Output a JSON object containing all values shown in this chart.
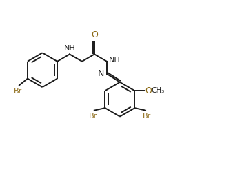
{
  "bg_color": "#ffffff",
  "line_color": "#1a1a1a",
  "br_color": "#8B6914",
  "o_color": "#8B6914",
  "n_color": "#1a1a1a",
  "line_width": 1.4,
  "figsize": [
    3.51,
    2.56
  ],
  "dpi": 100,
  "xlim": [
    0,
    10
  ],
  "ylim": [
    0,
    7.15
  ]
}
